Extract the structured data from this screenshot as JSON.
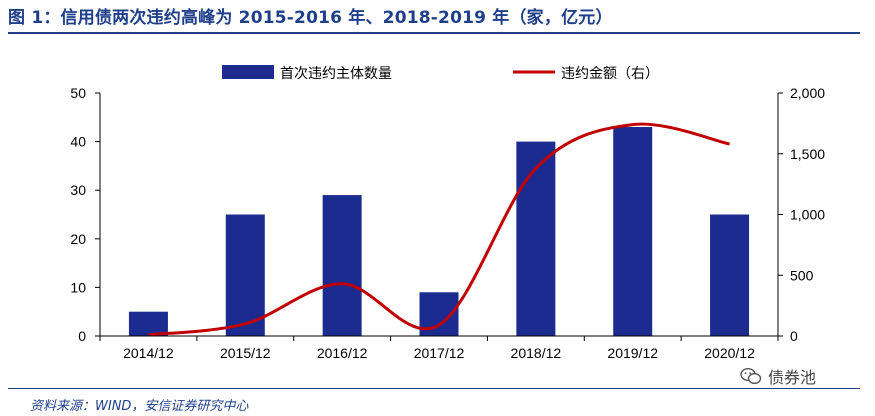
{
  "title": "图 1：信用债两次违约高峰为 2015-2016 年、2018-2019 年（家，亿元）",
  "source": "资料来源：WIND，安信证券研究中心",
  "watermark": {
    "text": "债券池",
    "icon": "wechat-icon"
  },
  "colors": {
    "bar": "#1c2b8f",
    "line": "#c00000",
    "title": "#1f3f8a"
  },
  "chart_data": {
    "type": "bar",
    "categories": [
      "2014/12",
      "2015/12",
      "2016/12",
      "2017/12",
      "2018/12",
      "2019/12",
      "2020/12"
    ],
    "legend_position": "top",
    "grid": false,
    "y_left": {
      "range": [
        0,
        50
      ],
      "ticks": [
        "0",
        "10",
        "20",
        "30",
        "40",
        "50"
      ]
    },
    "y_right": {
      "range": [
        0,
        2000
      ],
      "ticks": [
        "0",
        "500",
        "1,000",
        "1,500",
        "2,000"
      ]
    },
    "series": [
      {
        "name": "首次违约主体数量",
        "type": "bar",
        "axis": "left",
        "values": [
          5,
          25,
          29,
          9,
          40,
          43,
          25
        ]
      },
      {
        "name": "违约金额（右）",
        "type": "line",
        "axis": "right",
        "smooth": true,
        "values": [
          10,
          100,
          430,
          90,
          1380,
          1740,
          1580
        ]
      }
    ]
  }
}
